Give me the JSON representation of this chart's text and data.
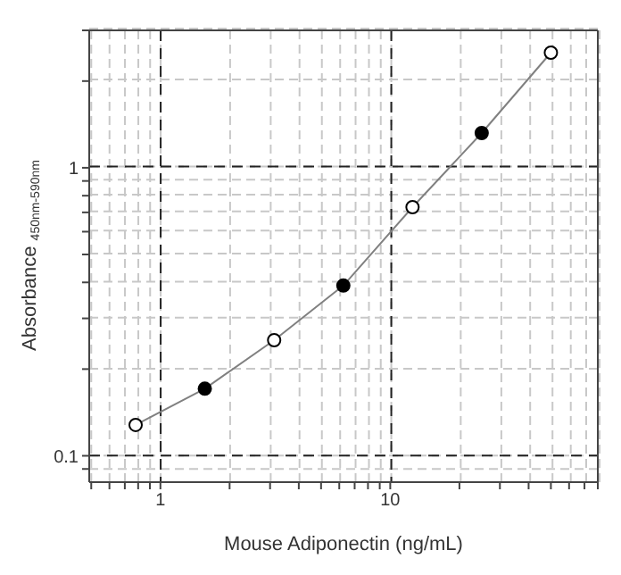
{
  "chart_data": {
    "type": "line",
    "xlabel": "Mouse Adiponectin (ng/mL)",
    "ylabel": "Absorbance $_{450nm-590nm}$",
    "log": "xy",
    "grid": true,
    "marker": "circle",
    "line_style": "solid",
    "x": [
      0.78,
      1.56,
      3.125,
      6.25,
      12.5,
      25,
      50
    ],
    "series": [
      {
        "color": "#808080",
        "colors": [
          "#ffffff",
          "#000000",
          "#ffffff",
          "#000000",
          "#ffffff",
          "#000000",
          "#ffffff"
        ],
        "values": [
          0.128,
          0.171,
          0.252,
          0.39,
          0.73,
          1.32,
          2.51
        ]
      }
    ],
    "xlim": [
      0.49,
      80
    ],
    "ylim": [
      0.081,
      3
    ],
    "xticks": [
      {
        "value": 0.5,
        "label": null
      },
      {
        "value": 0.6,
        "label": null
      },
      {
        "value": 0.7,
        "label": null
      },
      {
        "value": 0.8,
        "label": null
      },
      {
        "value": 0.9,
        "label": null
      },
      1,
      {
        "value": 2,
        "label": null
      },
      {
        "value": 3,
        "label": null
      },
      {
        "value": 4,
        "label": null
      },
      {
        "value": 5,
        "label": null
      },
      {
        "value": 6,
        "label": null
      },
      {
        "value": 7,
        "label": null
      },
      {
        "value": 8,
        "label": null
      },
      {
        "value": 9,
        "label": null
      },
      10,
      {
        "value": 20,
        "label": null
      },
      {
        "value": 30,
        "label": null
      },
      {
        "value": 40,
        "label": null
      },
      {
        "value": 50,
        "label": null
      },
      {
        "value": 60,
        "label": null
      },
      {
        "value": 70,
        "label": null
      },
      {
        "value": 80,
        "label": null
      }
    ],
    "yticks": [
      {
        "value": 0.09,
        "label": null
      },
      0.1,
      {
        "value": 0.2,
        "label": null
      },
      {
        "value": 0.3,
        "label": null
      },
      {
        "value": 0.4,
        "label": null
      },
      {
        "value": 0.5,
        "label": null
      },
      {
        "value": 0.6,
        "label": null
      },
      {
        "value": 0.7,
        "label": null
      },
      {
        "value": 0.8,
        "label": null
      },
      {
        "value": 0.9,
        "label": null
      },
      1,
      {
        "value": 2,
        "label": null
      },
      {
        "value": 3,
        "label": null
      }
    ]
  }
}
